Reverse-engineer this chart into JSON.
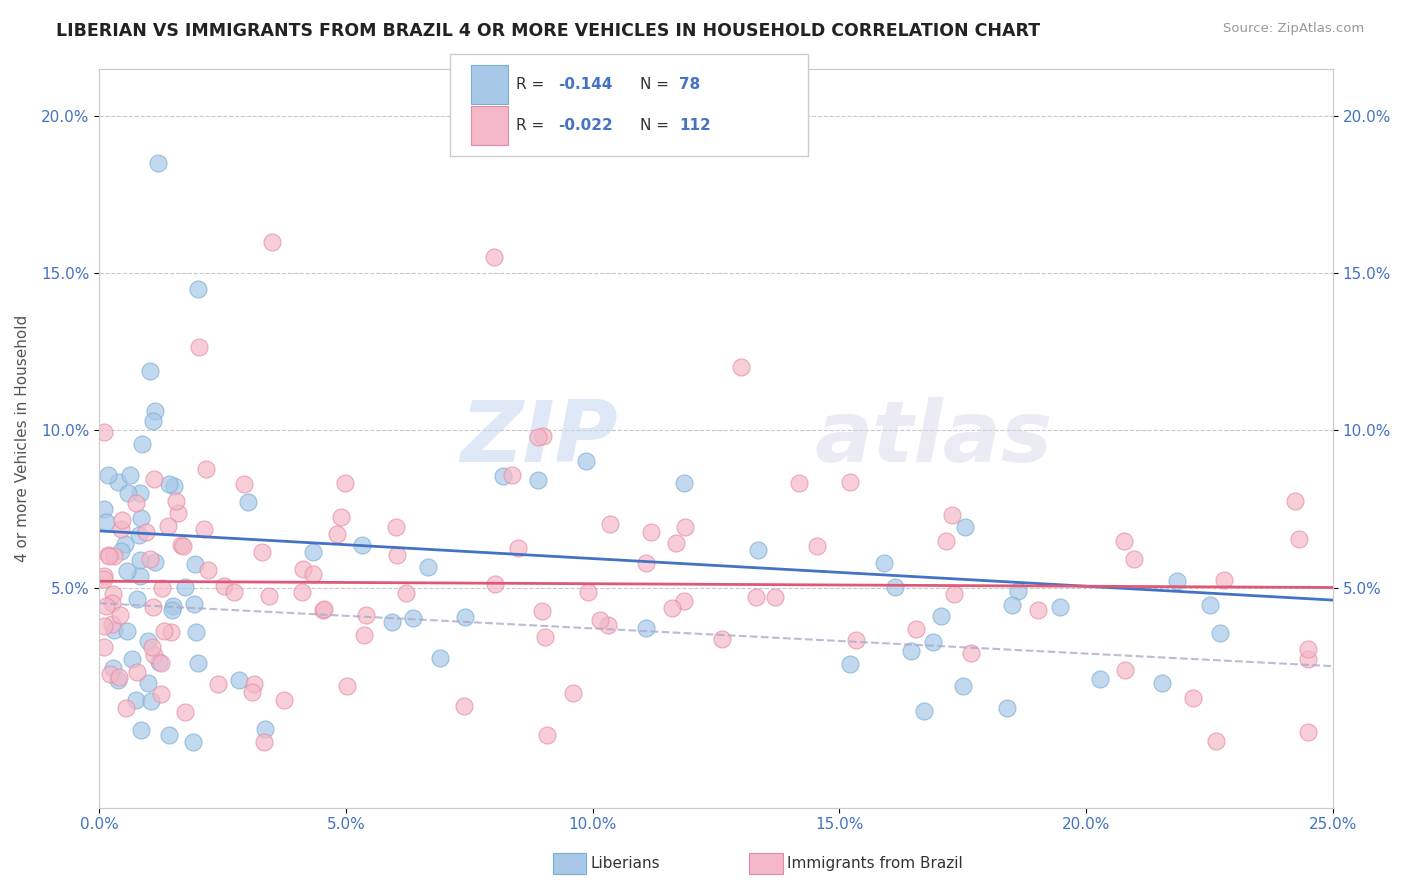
{
  "title": "LIBERIAN VS IMMIGRANTS FROM BRAZIL 4 OR MORE VEHICLES IN HOUSEHOLD CORRELATION CHART",
  "source": "Source: ZipAtlas.com",
  "ylabel": "4 or more Vehicles in Household",
  "xlim": [
    0.0,
    0.25
  ],
  "ylim": [
    -0.02,
    0.215
  ],
  "xtick_labels": [
    "0.0%",
    "5.0%",
    "10.0%",
    "15.0%",
    "20.0%",
    "25.0%"
  ],
  "xtick_vals": [
    0.0,
    0.05,
    0.1,
    0.15,
    0.2,
    0.25
  ],
  "ytick_labels": [
    "5.0%",
    "10.0%",
    "15.0%",
    "20.0%"
  ],
  "ytick_vals": [
    0.05,
    0.1,
    0.15,
    0.2
  ],
  "liberian_color": "#a8c8e8",
  "liberian_edge_color": "#7aaed4",
  "brazil_color": "#f4b8c8",
  "brazil_edge_color": "#e88aa0",
  "liberian_line_color": "#4472c4",
  "brazil_line_color": "#e05878",
  "liberian_R": -0.144,
  "liberian_N": 78,
  "brazil_R": -0.022,
  "brazil_N": 112,
  "watermark_zip": "ZIP",
  "watermark_atlas": "atlas",
  "legend_R1": "R = ",
  "legend_R1_val": "-0.144",
  "legend_N1": "N = ",
  "legend_N1_val": "78",
  "legend_R2": "R = ",
  "legend_R2_val": "-0.022",
  "legend_N2": "N = ",
  "legend_N2_val": "112",
  "bottom_legend_lib": "Liberians",
  "bottom_legend_brazil": "Immigrants from Brazil"
}
